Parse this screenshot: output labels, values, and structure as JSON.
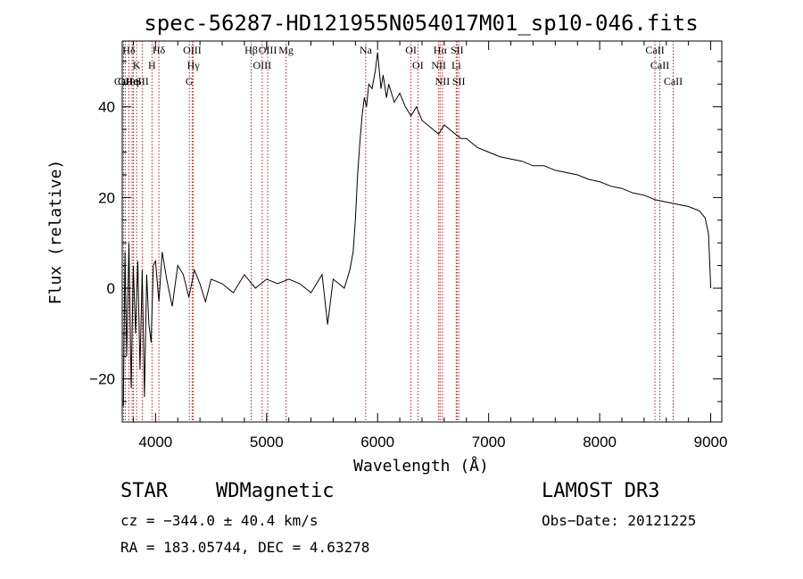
{
  "chart_data": {
    "type": "line",
    "title": "spec-56287-HD121955N054017M01_sp10-046.fits",
    "xlabel": "Wavelength (Å)",
    "ylabel": "Flux (relative)",
    "xlim": [
      3700,
      9100
    ],
    "ylim": [
      -29.5,
      54.5
    ],
    "x_ticks": [
      4000,
      5000,
      6000,
      7000,
      8000,
      9000
    ],
    "y_ticks": [
      -20,
      0,
      20,
      40
    ],
    "grid": false,
    "series": [
      {
        "x": [
          3710,
          3725,
          3740,
          3760,
          3780,
          3800,
          3820,
          3840,
          3860,
          3880,
          3900,
          3920,
          3940,
          3960,
          3980,
          4000,
          4030,
          4060,
          4100,
          4150,
          4200,
          4250,
          4300,
          4350,
          4400,
          4450,
          4500,
          4600,
          4700,
          4800,
          4900,
          5000,
          5100,
          5200,
          5300,
          5400,
          5500,
          5550,
          5600,
          5650,
          5700,
          5750,
          5780,
          5800,
          5820,
          5840,
          5860,
          5880,
          5900,
          5920,
          5950,
          5980,
          6000,
          6030,
          6050,
          6080,
          6100,
          6150,
          6200,
          6250,
          6300,
          6350,
          6400,
          6450,
          6500,
          6550,
          6600,
          6650,
          6700,
          6750,
          6800,
          6850,
          6900,
          7000,
          7100,
          7200,
          7300,
          7400,
          7500,
          7600,
          7700,
          7800,
          7900,
          8000,
          8100,
          8200,
          8300,
          8400,
          8500,
          8600,
          8700,
          8800,
          8900,
          8950,
          8980,
          9000
        ],
        "y": [
          -26,
          8,
          -15,
          10,
          -22,
          5,
          -10,
          6,
          -18,
          4,
          -24,
          3,
          -8,
          -12,
          5,
          6,
          -3,
          8,
          2,
          -4,
          5,
          3,
          -2,
          4,
          1,
          -3,
          2,
          1,
          -1,
          3,
          0,
          2,
          1,
          2,
          1,
          -1,
          3,
          -8,
          2,
          1,
          0,
          4,
          8,
          15,
          25,
          32,
          38,
          42,
          40,
          45,
          44,
          48,
          52,
          44,
          47,
          42,
          45,
          41,
          43,
          40,
          38,
          40,
          37,
          36,
          35,
          34,
          36,
          35,
          34,
          33,
          33,
          32,
          31,
          30,
          29,
          28.5,
          28,
          27,
          27,
          26,
          25.5,
          25,
          24,
          23.5,
          22.5,
          22,
          21,
          20.5,
          19.5,
          19,
          18.5,
          18,
          17,
          15.5,
          12,
          0
        ]
      }
    ],
    "lines": [
      {
        "label": "Hδ",
        "x": 3760
      },
      {
        "label": "K",
        "x": 3830
      },
      {
        "label": "Hδ",
        "x": 4030
      },
      {
        "label": "OIII",
        "x": 4330
      },
      {
        "label": "OIII",
        "x": 5010
      },
      {
        "label": "OII",
        "x": 3727
      },
      {
        "label": "HeI",
        "x": 3800
      },
      {
        "label": "SII",
        "x": 3880
      },
      {
        "label": "Hγ",
        "x": 4340
      },
      {
        "label": "OIII",
        "x": 4960
      },
      {
        "label": "CaII",
        "x": 3712
      },
      {
        "label": "Hη",
        "x": 3789
      },
      {
        "label": "H",
        "x": 3968
      },
      {
        "label": "G",
        "x": 4304
      },
      {
        "label": "Hβ",
        "x": 4861
      },
      {
        "label": "Mg",
        "x": 5175
      },
      {
        "label": "Na",
        "x": 5893
      },
      {
        "label": "OI",
        "x": 6300
      },
      {
        "label": "OI",
        "x": 6363
      },
      {
        "label": "Hα",
        "x": 6563
      },
      {
        "label": "NII",
        "x": 6550
      },
      {
        "label": "NII",
        "x": 6584
      },
      {
        "label": "SII",
        "x": 6716
      },
      {
        "label": "Li",
        "x": 6708
      },
      {
        "label": "SII",
        "x": 6731
      },
      {
        "label": "CaII",
        "x": 8498
      },
      {
        "label": "CaII",
        "x": 8542
      },
      {
        "label": "CaII",
        "x": 8662
      }
    ]
  },
  "info": {
    "object_class": "STAR",
    "subclass": "WDMagnetic",
    "survey": "LAMOST DR3",
    "cz": "cz = −344.0 ± 40.4 km/s",
    "obs_date": "Obs−Date: 20121225",
    "coords": "RA = 183.05744, DEC =   4.63278"
  }
}
